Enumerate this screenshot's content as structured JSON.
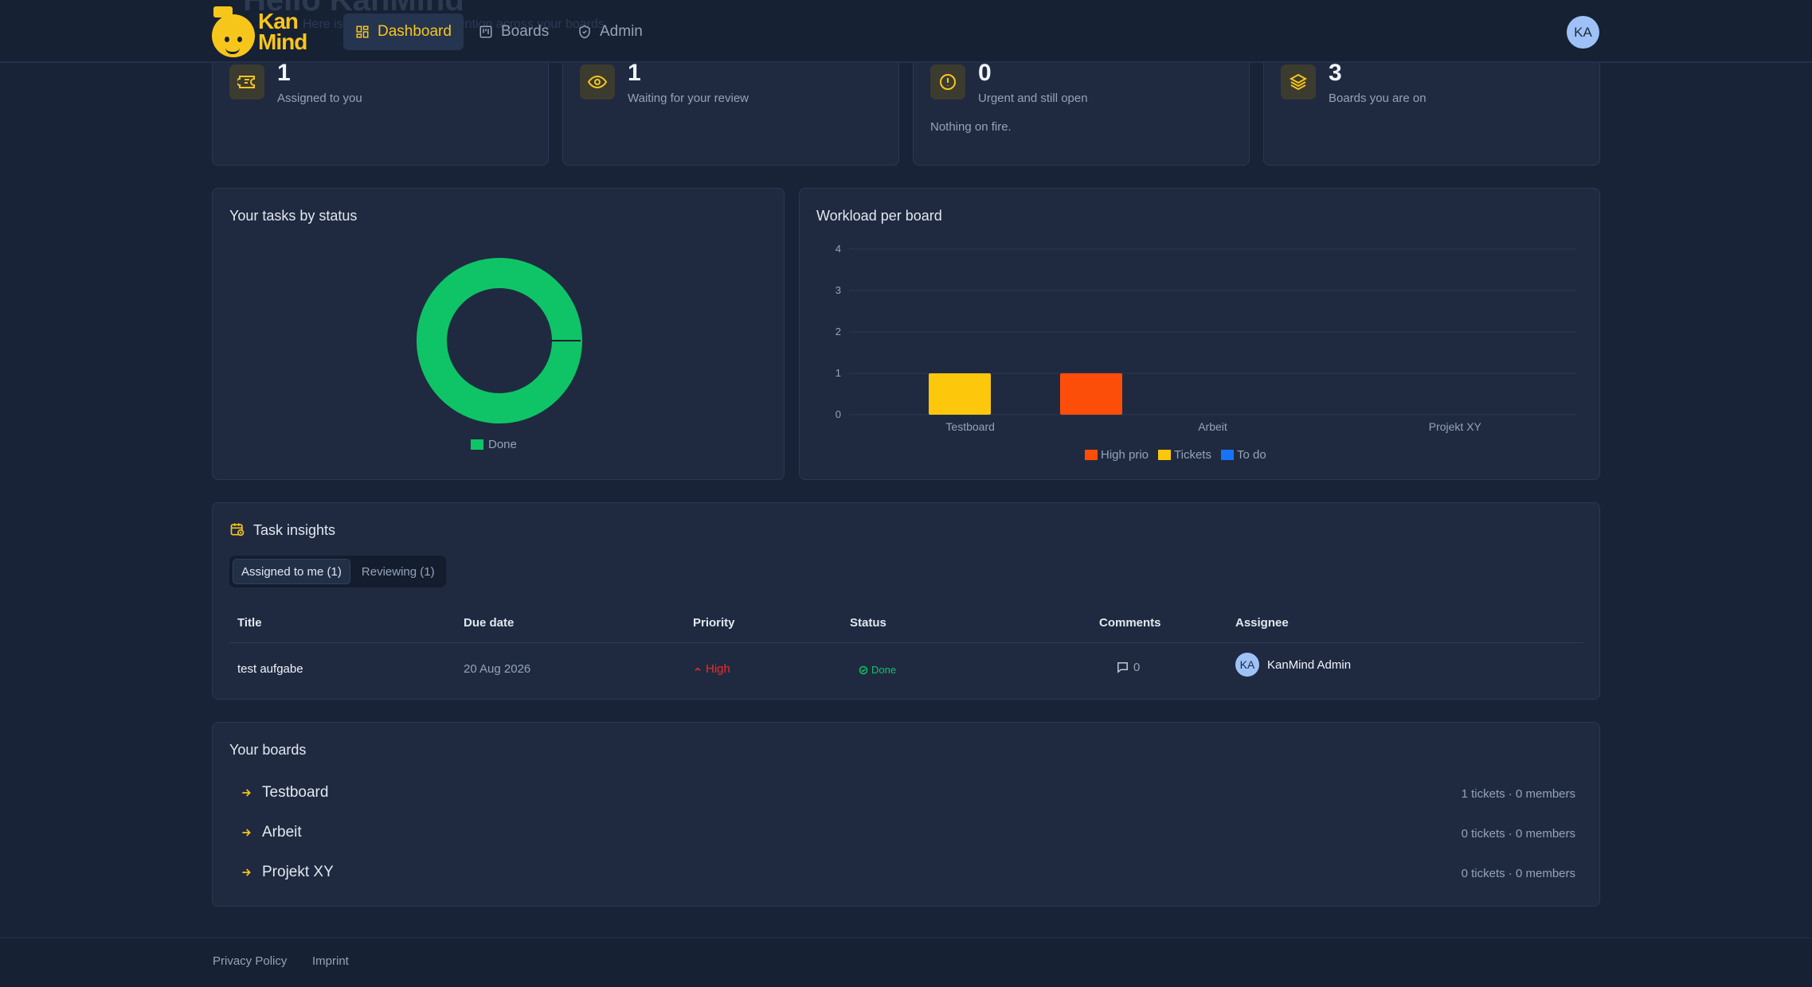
{
  "app": {
    "name": "KanMind",
    "logo_text": "Kan\nMind"
  },
  "ghost": {
    "title": "Hello KanMind",
    "subtitle": "Here is what needs your attention across your boards."
  },
  "nav": {
    "dashboard": "Dashboard",
    "boards": "Boards",
    "admin": "Admin",
    "avatar": "KA"
  },
  "stats": [
    {
      "value": "1",
      "label": "Assigned to you",
      "icon": "ticket-icon"
    },
    {
      "value": "1",
      "label": "Waiting for your review",
      "icon": "eye-icon"
    },
    {
      "value": "0",
      "label": "Urgent and still open",
      "note": "Nothing on fire.",
      "icon": "alert-icon"
    },
    {
      "value": "3",
      "label": "Boards you are on",
      "icon": "layers-icon"
    }
  ],
  "status_chart": {
    "title": "Your tasks by status",
    "chart_data": {
      "type": "pie",
      "categories": [
        "Done"
      ],
      "values": [
        1
      ],
      "colors": [
        "#0fc466"
      ],
      "legend": "bottom"
    }
  },
  "workload_chart": {
    "title": "Workload per board",
    "chart_data": {
      "type": "bar",
      "categories": [
        "Testboard",
        "Arbeit",
        "Projekt XY"
      ],
      "series": [
        {
          "name": "Tickets",
          "values": [
            1,
            0,
            0
          ],
          "color": "#fdc70c"
        },
        {
          "name": "High prio",
          "values": [
            1,
            0,
            0
          ],
          "color": "#fd4e09"
        },
        {
          "name": "To do",
          "values": [
            0,
            0,
            0
          ],
          "color": "#1774f8"
        }
      ],
      "legend_order": [
        "High prio",
        "Tickets",
        "To do"
      ],
      "ylim": [
        0,
        4
      ],
      "yticks": [
        "0",
        "1",
        "2",
        "3",
        "4"
      ],
      "grid": true,
      "legend": "bottom"
    }
  },
  "insights": {
    "title": "Task insights",
    "tabs": [
      "Assigned to me (1)",
      "Reviewing (1)"
    ],
    "columns": [
      "Title",
      "Due date",
      "Priority",
      "Status",
      "Comments",
      "Assignee"
    ],
    "row": {
      "title": "test aufgabe",
      "due": "20 Aug 2026",
      "priority": "High",
      "status": "Done",
      "comments": "0",
      "assignee_initials": "KA",
      "assignee": "KanMind Admin"
    }
  },
  "boards": {
    "title": "Your boards",
    "items": [
      {
        "name": "Testboard",
        "meta": "1 tickets · 0 members"
      },
      {
        "name": "Arbeit",
        "meta": "0 tickets · 0 members"
      },
      {
        "name": "Projekt XY",
        "meta": "0 tickets · 0 members"
      }
    ]
  },
  "footer": {
    "privacy": "Privacy Policy",
    "imprint": "Imprint"
  },
  "colors": {
    "accent": "#f7c61a",
    "done": "#0fc466",
    "high": "#ef2b2b"
  }
}
